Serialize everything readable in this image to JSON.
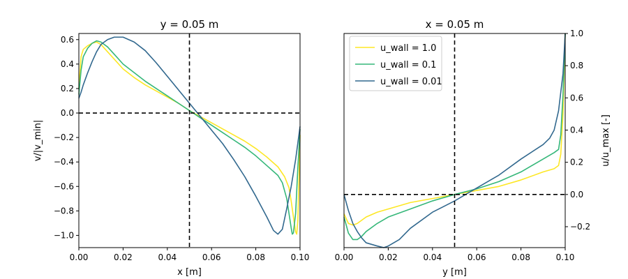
{
  "chart_data": [
    {
      "type": "line",
      "title": "y = 0.05 m",
      "xlabel": "x [m]",
      "ylabel": "v/|v_min|",
      "xlim": [
        0.0,
        0.1
      ],
      "ylim": [
        -1.1,
        0.65
      ],
      "xticks": [
        "0.00",
        "0.02",
        "0.04",
        "0.06",
        "0.08",
        "0.10"
      ],
      "yticks": [
        "0.6",
        "0.4",
        "0.2",
        "0.0",
        "−0.2",
        "−0.4",
        "−0.6",
        "−0.8",
        "−1.0"
      ],
      "reference_lines": {
        "vertical_x": 0.05,
        "horizontal_y": 0.0
      },
      "series": [
        {
          "color": "#fde725",
          "points": [
            [
              0.0,
              0.2
            ],
            [
              0.001,
              0.46
            ],
            [
              0.002,
              0.52
            ],
            [
              0.004,
              0.55
            ],
            [
              0.006,
              0.57
            ],
            [
              0.008,
              0.58
            ],
            [
              0.01,
              0.56
            ],
            [
              0.013,
              0.5
            ],
            [
              0.016,
              0.44
            ],
            [
              0.02,
              0.36
            ],
            [
              0.025,
              0.29
            ],
            [
              0.03,
              0.23
            ],
            [
              0.035,
              0.18
            ],
            [
              0.04,
              0.13
            ],
            [
              0.045,
              0.08
            ],
            [
              0.05,
              0.02
            ],
            [
              0.055,
              -0.03
            ],
            [
              0.06,
              -0.08
            ],
            [
              0.065,
              -0.13
            ],
            [
              0.07,
              -0.18
            ],
            [
              0.075,
              -0.23
            ],
            [
              0.08,
              -0.29
            ],
            [
              0.085,
              -0.36
            ],
            [
              0.09,
              -0.44
            ],
            [
              0.093,
              -0.52
            ],
            [
              0.095,
              -0.61
            ],
            [
              0.096,
              -0.72
            ],
            [
              0.097,
              -0.85
            ],
            [
              0.098,
              -0.97
            ],
            [
              0.0985,
              -0.99
            ],
            [
              0.099,
              -0.88
            ],
            [
              0.0995,
              -0.55
            ],
            [
              0.1,
              -0.18
            ]
          ]
        },
        {
          "color": "#35b779",
          "points": [
            [
              0.0,
              0.15
            ],
            [
              0.001,
              0.35
            ],
            [
              0.002,
              0.46
            ],
            [
              0.004,
              0.53
            ],
            [
              0.006,
              0.57
            ],
            [
              0.008,
              0.59
            ],
            [
              0.01,
              0.58
            ],
            [
              0.013,
              0.54
            ],
            [
              0.016,
              0.48
            ],
            [
              0.02,
              0.4
            ],
            [
              0.025,
              0.33
            ],
            [
              0.03,
              0.26
            ],
            [
              0.035,
              0.2
            ],
            [
              0.04,
              0.14
            ],
            [
              0.045,
              0.08
            ],
            [
              0.05,
              0.02
            ],
            [
              0.055,
              -0.04
            ],
            [
              0.06,
              -0.1
            ],
            [
              0.065,
              -0.16
            ],
            [
              0.07,
              -0.22
            ],
            [
              0.075,
              -0.28
            ],
            [
              0.08,
              -0.35
            ],
            [
              0.085,
              -0.43
            ],
            [
              0.09,
              -0.51
            ],
            [
              0.092,
              -0.57
            ],
            [
              0.094,
              -0.7
            ],
            [
              0.095,
              -0.82
            ],
            [
              0.096,
              -0.94
            ],
            [
              0.0965,
              -0.99
            ],
            [
              0.097,
              -0.98
            ],
            [
              0.098,
              -0.82
            ],
            [
              0.099,
              -0.45
            ],
            [
              0.1,
              -0.13
            ]
          ]
        },
        {
          "color": "#31688e",
          "points": [
            [
              0.0,
              0.12
            ],
            [
              0.001,
              0.17
            ],
            [
              0.002,
              0.23
            ],
            [
              0.004,
              0.33
            ],
            [
              0.006,
              0.42
            ],
            [
              0.008,
              0.5
            ],
            [
              0.01,
              0.56
            ],
            [
              0.013,
              0.6
            ],
            [
              0.016,
              0.62
            ],
            [
              0.02,
              0.62
            ],
            [
              0.025,
              0.58
            ],
            [
              0.03,
              0.51
            ],
            [
              0.035,
              0.41
            ],
            [
              0.04,
              0.3
            ],
            [
              0.045,
              0.19
            ],
            [
              0.05,
              0.08
            ],
            [
              0.055,
              -0.03
            ],
            [
              0.06,
              -0.14
            ],
            [
              0.065,
              -0.25
            ],
            [
              0.07,
              -0.38
            ],
            [
              0.075,
              -0.52
            ],
            [
              0.08,
              -0.68
            ],
            [
              0.085,
              -0.85
            ],
            [
              0.088,
              -0.96
            ],
            [
              0.09,
              -0.99
            ],
            [
              0.092,
              -0.95
            ],
            [
              0.094,
              -0.78
            ],
            [
              0.096,
              -0.6
            ],
            [
              0.098,
              -0.38
            ],
            [
              0.1,
              -0.11
            ]
          ]
        }
      ]
    },
    {
      "type": "line",
      "title": "x = 0.05 m",
      "xlabel": "y [m]",
      "ylabel": "u/u_max [-]",
      "xlim": [
        0.0,
        0.1
      ],
      "ylim": [
        -0.33,
        1.0
      ],
      "xticks": [
        "0.00",
        "0.02",
        "0.04",
        "0.06",
        "0.08",
        "0.10"
      ],
      "yticks": [
        "1.0",
        "0.8",
        "0.6",
        "0.4",
        "0.2",
        "0.0",
        "−0.2"
      ],
      "reference_lines": {
        "vertical_x": 0.05,
        "horizontal_y": 0.0
      },
      "legend_position": "upper-left",
      "series": [
        {
          "name": "u_wall = 1.0",
          "color": "#fde725",
          "points": [
            [
              0.0,
              -0.12
            ],
            [
              0.002,
              -0.18
            ],
            [
              0.004,
              -0.19
            ],
            [
              0.006,
              -0.18
            ],
            [
              0.008,
              -0.16
            ],
            [
              0.01,
              -0.14
            ],
            [
              0.015,
              -0.11
            ],
            [
              0.02,
              -0.09
            ],
            [
              0.03,
              -0.05
            ],
            [
              0.04,
              -0.025
            ],
            [
              0.05,
              0.0
            ],
            [
              0.06,
              0.025
            ],
            [
              0.07,
              0.05
            ],
            [
              0.08,
              0.09
            ],
            [
              0.09,
              0.14
            ],
            [
              0.095,
              0.16
            ],
            [
              0.097,
              0.18
            ],
            [
              0.098,
              0.25
            ],
            [
              0.099,
              0.5
            ],
            [
              0.1,
              1.0
            ]
          ]
        },
        {
          "name": "u_wall = 0.1",
          "color": "#35b779",
          "points": [
            [
              0.0,
              -0.14
            ],
            [
              0.002,
              -0.24
            ],
            [
              0.004,
              -0.28
            ],
            [
              0.006,
              -0.28
            ],
            [
              0.008,
              -0.26
            ],
            [
              0.01,
              -0.23
            ],
            [
              0.015,
              -0.18
            ],
            [
              0.02,
              -0.14
            ],
            [
              0.03,
              -0.09
            ],
            [
              0.04,
              -0.04
            ],
            [
              0.05,
              0.0
            ],
            [
              0.06,
              0.035
            ],
            [
              0.07,
              0.08
            ],
            [
              0.08,
              0.14
            ],
            [
              0.09,
              0.22
            ],
            [
              0.095,
              0.26
            ],
            [
              0.097,
              0.28
            ],
            [
              0.098,
              0.37
            ],
            [
              0.099,
              0.62
            ],
            [
              0.1,
              1.0
            ]
          ]
        },
        {
          "name": "u_wall = 0.01",
          "color": "#31688e",
          "points": [
            [
              0.0,
              0.0
            ],
            [
              0.002,
              -0.1
            ],
            [
              0.004,
              -0.18
            ],
            [
              0.006,
              -0.23
            ],
            [
              0.008,
              -0.27
            ],
            [
              0.01,
              -0.3
            ],
            [
              0.015,
              -0.32
            ],
            [
              0.018,
              -0.33
            ],
            [
              0.02,
              -0.32
            ],
            [
              0.025,
              -0.28
            ],
            [
              0.03,
              -0.21
            ],
            [
              0.04,
              -0.11
            ],
            [
              0.05,
              -0.04
            ],
            [
              0.06,
              0.04
            ],
            [
              0.07,
              0.12
            ],
            [
              0.08,
              0.22
            ],
            [
              0.09,
              0.31
            ],
            [
              0.093,
              0.35
            ],
            [
              0.095,
              0.4
            ],
            [
              0.097,
              0.52
            ],
            [
              0.099,
              0.75
            ],
            [
              0.1,
              1.0
            ]
          ]
        }
      ]
    }
  ]
}
